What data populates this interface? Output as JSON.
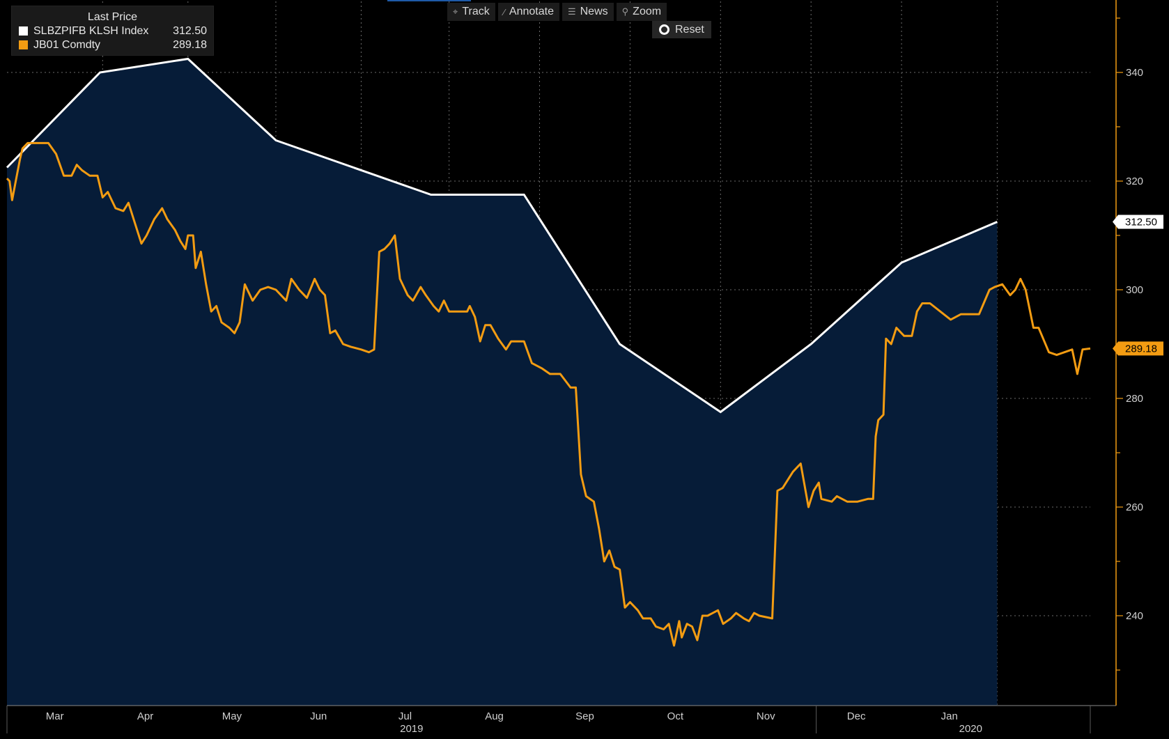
{
  "toolbar": {
    "track": "Track",
    "annotate": "Annotate",
    "news": "News",
    "zoom": "Zoom",
    "reset": "Reset"
  },
  "legend": {
    "title": "Last Price",
    "items": [
      {
        "name": "SLBZPIFB KLSH Index",
        "value": "312.50",
        "color": "#ffffff"
      },
      {
        "name": "JB01 Comdty",
        "value": "289.18",
        "color": "#f39c12"
      }
    ]
  },
  "colors": {
    "background": "#000000",
    "area": "#061c38",
    "index": "#ffffff",
    "futures": "#f39c12"
  },
  "chart_data": {
    "type": "area",
    "y_axis_position": "right",
    "yticks": [
      240,
      260,
      280,
      300,
      320,
      340
    ],
    "month_labels": [
      "Mar",
      "Apr",
      "May",
      "Jun",
      "Jul",
      "Aug",
      "Sep",
      "Oct",
      "Nov",
      "Dec",
      "Jan"
    ],
    "year_labels": [
      "2019",
      "2020"
    ],
    "series": [
      {
        "name": "SLBZPIFB KLSH Index",
        "style": "line with filled area",
        "last_value_label": "312.50",
        "points": [
          [
            "2019-02-22",
            322.5
          ],
          [
            "2019-03-30",
            340.0
          ],
          [
            "2019-05-03",
            342.5
          ],
          [
            "2019-06-06",
            327.5
          ],
          [
            "2019-08-05",
            317.5
          ],
          [
            "2019-09-10",
            317.5
          ],
          [
            "2019-10-17",
            290.0
          ],
          [
            "2019-11-25",
            277.5
          ],
          [
            "2019-12-30",
            290.0
          ],
          [
            "2020-02-03",
            305.0
          ],
          [
            "2020-03-11",
            312.5
          ]
        ]
      },
      {
        "name": "JB01 Comdty",
        "style": "line",
        "last_value_label": "289.18",
        "points": [
          [
            "2019-02-22",
            320.5
          ],
          [
            "2019-02-23",
            320
          ],
          [
            "2019-02-24",
            316.5
          ],
          [
            "2019-02-27",
            324
          ],
          [
            "2019-02-28",
            326
          ],
          [
            "2019-03-02",
            327
          ],
          [
            "2019-03-07",
            327
          ],
          [
            "2019-03-10",
            327
          ],
          [
            "2019-03-13",
            325
          ],
          [
            "2019-03-16",
            321
          ],
          [
            "2019-03-19",
            321
          ],
          [
            "2019-03-21",
            323
          ],
          [
            "2019-03-23",
            322
          ],
          [
            "2019-03-26",
            321
          ],
          [
            "2019-03-29",
            321
          ],
          [
            "2019-03-31",
            317
          ],
          [
            "2019-04-02",
            318
          ],
          [
            "2019-04-05",
            315
          ],
          [
            "2019-04-08",
            314.5
          ],
          [
            "2019-04-10",
            316
          ],
          [
            "2019-04-12",
            313
          ],
          [
            "2019-04-15",
            308.5
          ],
          [
            "2019-04-17",
            310
          ],
          [
            "2019-04-20",
            313
          ],
          [
            "2019-04-23",
            315
          ],
          [
            "2019-04-25",
            313
          ],
          [
            "2019-04-28",
            311
          ],
          [
            "2019-04-30",
            309
          ],
          [
            "2019-05-02",
            307.5
          ],
          [
            "2019-05-03",
            310
          ],
          [
            "2019-05-05",
            310
          ],
          [
            "2019-05-06",
            304
          ],
          [
            "2019-05-08",
            307
          ],
          [
            "2019-05-10",
            301
          ],
          [
            "2019-05-12",
            296
          ],
          [
            "2019-05-14",
            297
          ],
          [
            "2019-05-16",
            294
          ],
          [
            "2019-05-19",
            293
          ],
          [
            "2019-05-21",
            292
          ],
          [
            "2019-05-23",
            294
          ],
          [
            "2019-05-25",
            301
          ],
          [
            "2019-05-28",
            298
          ],
          [
            "2019-05-31",
            300
          ],
          [
            "2019-06-03",
            300.5
          ],
          [
            "2019-06-06",
            300
          ],
          [
            "2019-06-08",
            299
          ],
          [
            "2019-06-10",
            298
          ],
          [
            "2019-06-12",
            302
          ],
          [
            "2019-06-15",
            300
          ],
          [
            "2019-06-18",
            298.5
          ],
          [
            "2019-06-21",
            302
          ],
          [
            "2019-06-23",
            300
          ],
          [
            "2019-06-25",
            299
          ],
          [
            "2019-06-27",
            292
          ],
          [
            "2019-06-29",
            292.5
          ],
          [
            "2019-07-02",
            290
          ],
          [
            "2019-07-05",
            289.5
          ],
          [
            "2019-07-09",
            289
          ],
          [
            "2019-07-12",
            288.5
          ],
          [
            "2019-07-14",
            289
          ],
          [
            "2019-07-16",
            307
          ],
          [
            "2019-07-18",
            307.5
          ],
          [
            "2019-07-20",
            308.5
          ],
          [
            "2019-07-22",
            310
          ],
          [
            "2019-07-24",
            302
          ],
          [
            "2019-07-27",
            299
          ],
          [
            "2019-07-29",
            298
          ],
          [
            "2019-08-01",
            300.5
          ],
          [
            "2019-08-03",
            299
          ],
          [
            "2019-08-06",
            297
          ],
          [
            "2019-08-08",
            296
          ],
          [
            "2019-08-10",
            298
          ],
          [
            "2019-08-12",
            296
          ],
          [
            "2019-08-16",
            296
          ],
          [
            "2019-08-19",
            296
          ],
          [
            "2019-08-20",
            297
          ],
          [
            "2019-08-22",
            295
          ],
          [
            "2019-08-24",
            290.5
          ],
          [
            "2019-08-26",
            293.5
          ],
          [
            "2019-08-28",
            293.5
          ],
          [
            "2019-08-31",
            291
          ],
          [
            "2019-09-03",
            289
          ],
          [
            "2019-09-05",
            290.5
          ],
          [
            "2019-09-10",
            290.5
          ],
          [
            "2019-09-13",
            286.5
          ],
          [
            "2019-09-17",
            285.5
          ],
          [
            "2019-09-20",
            284.5
          ],
          [
            "2019-09-24",
            284.5
          ],
          [
            "2019-09-28",
            282
          ],
          [
            "2019-09-30",
            282
          ],
          [
            "2019-10-02",
            266
          ],
          [
            "2019-10-04",
            262
          ],
          [
            "2019-10-07",
            261
          ],
          [
            "2019-10-09",
            256
          ],
          [
            "2019-10-11",
            250
          ],
          [
            "2019-10-13",
            252
          ],
          [
            "2019-10-15",
            249
          ],
          [
            "2019-10-17",
            248.5
          ],
          [
            "2019-10-19",
            241.5
          ],
          [
            "2019-10-21",
            242.5
          ],
          [
            "2019-10-24",
            241
          ],
          [
            "2019-10-26",
            239.5
          ],
          [
            "2019-10-29",
            239.5
          ],
          [
            "2019-10-31",
            238
          ],
          [
            "2019-11-03",
            237.5
          ],
          [
            "2019-11-05",
            238.5
          ],
          [
            "2019-11-07",
            234.5
          ],
          [
            "2019-11-09",
            239
          ],
          [
            "2019-11-10",
            236
          ],
          [
            "2019-11-12",
            238.5
          ],
          [
            "2019-11-14",
            238
          ],
          [
            "2019-11-16",
            235.5
          ],
          [
            "2019-11-18",
            240
          ],
          [
            "2019-11-20",
            240
          ],
          [
            "2019-11-22",
            240.5
          ],
          [
            "2019-11-24",
            241
          ],
          [
            "2019-11-26",
            238.5
          ],
          [
            "2019-11-29",
            239.5
          ],
          [
            "2019-12-01",
            240.5
          ],
          [
            "2019-12-04",
            239.5
          ],
          [
            "2019-12-06",
            239
          ],
          [
            "2019-12-08",
            240.5
          ],
          [
            "2019-12-10",
            240
          ],
          [
            "2019-12-15",
            239.5
          ],
          [
            "2019-12-17",
            263
          ],
          [
            "2019-12-19",
            263.5
          ],
          [
            "2019-12-23",
            266.5
          ],
          [
            "2019-12-26",
            268
          ],
          [
            "2019-12-29",
            260
          ],
          [
            "2019-12-31",
            263
          ],
          [
            "2020-01-02",
            264.5
          ],
          [
            "2020-01-03",
            261.5
          ],
          [
            "2020-01-07",
            261
          ],
          [
            "2020-01-09",
            262
          ],
          [
            "2020-01-13",
            261
          ],
          [
            "2020-01-17",
            261
          ],
          [
            "2020-01-21",
            261.5
          ],
          [
            "2020-01-23",
            261.5
          ],
          [
            "2020-01-24",
            273
          ],
          [
            "2020-01-25",
            276
          ],
          [
            "2020-01-27",
            277
          ],
          [
            "2020-01-28",
            291
          ],
          [
            "2020-01-30",
            290
          ],
          [
            "2020-02-01",
            293
          ],
          [
            "2020-02-04",
            291.5
          ],
          [
            "2020-02-07",
            291.5
          ],
          [
            "2020-02-09",
            296
          ],
          [
            "2020-02-11",
            297.5
          ],
          [
            "2020-02-14",
            297.5
          ],
          [
            "2020-02-18",
            296
          ],
          [
            "2020-02-22",
            294.5
          ],
          [
            "2020-02-26",
            295.5
          ],
          [
            "2020-03-01",
            295.5
          ],
          [
            "2020-03-04",
            295.5
          ],
          [
            "2020-03-08",
            300
          ],
          [
            "2020-03-10",
            300.5
          ],
          [
            "2020-03-13",
            301
          ],
          [
            "2020-03-16",
            299
          ],
          [
            "2020-03-18",
            300
          ],
          [
            "2020-03-20",
            302
          ],
          [
            "2020-03-22",
            300
          ],
          [
            "2020-03-25",
            293
          ],
          [
            "2020-03-27",
            293
          ],
          [
            "2020-03-31",
            288.5
          ],
          [
            "2020-04-03",
            288
          ],
          [
            "2020-04-06",
            288.5
          ],
          [
            "2020-04-09",
            289
          ],
          [
            "2020-04-11",
            284.5
          ],
          [
            "2020-04-13",
            289
          ],
          [
            "2020-04-16",
            289.18
          ]
        ]
      }
    ]
  }
}
